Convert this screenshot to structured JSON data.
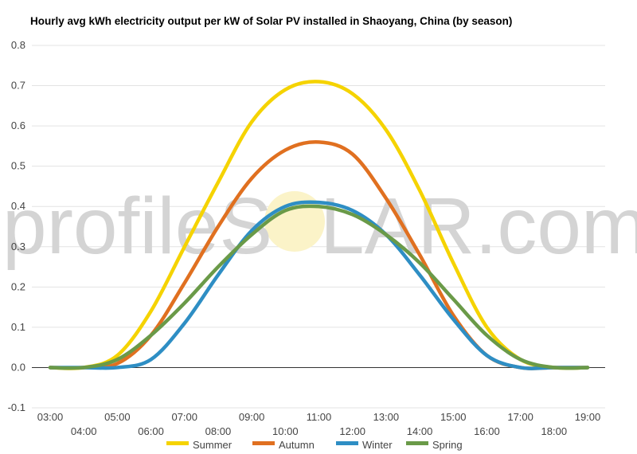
{
  "chart_data": {
    "type": "line",
    "title": "Hourly avg kWh electricity output per kW of Solar PV installed in Shaoyang, China (by season)",
    "xlabel": "",
    "ylabel": "",
    "ylim": [
      -0.1,
      0.8
    ],
    "yticks": [
      "-0.1",
      "0.0",
      "0.1",
      "0.2",
      "0.3",
      "0.4",
      "0.5",
      "0.6",
      "0.7",
      "0.8"
    ],
    "x": [
      "03:00",
      "04:00",
      "05:00",
      "06:00",
      "07:00",
      "08:00",
      "09:00",
      "10:00",
      "11:00",
      "12:00",
      "13:00",
      "14:00",
      "15:00",
      "16:00",
      "17:00",
      "18:00",
      "19:00"
    ],
    "grid": true,
    "legend": "bottom",
    "series": [
      {
        "name": "Summer",
        "color": "#f5d300",
        "values": [
          0.0,
          0.0,
          0.03,
          0.14,
          0.3,
          0.46,
          0.61,
          0.69,
          0.71,
          0.68,
          0.59,
          0.44,
          0.26,
          0.1,
          0.02,
          0.0,
          0.0
        ]
      },
      {
        "name": "Autumn",
        "color": "#e07020",
        "values": [
          0.0,
          0.0,
          0.01,
          0.08,
          0.21,
          0.35,
          0.47,
          0.54,
          0.56,
          0.53,
          0.42,
          0.28,
          0.13,
          0.03,
          0.0,
          0.0,
          0.0
        ]
      },
      {
        "name": "Winter",
        "color": "#2e8ec4",
        "values": [
          0.0,
          0.0,
          0.0,
          0.02,
          0.11,
          0.23,
          0.34,
          0.4,
          0.41,
          0.39,
          0.33,
          0.23,
          0.12,
          0.03,
          0.0,
          0.0,
          0.0
        ]
      },
      {
        "name": "Spring",
        "color": "#6a9a48",
        "values": [
          0.0,
          0.0,
          0.02,
          0.08,
          0.16,
          0.25,
          0.33,
          0.39,
          0.4,
          0.38,
          0.33,
          0.26,
          0.17,
          0.08,
          0.02,
          0.0,
          0.0
        ]
      }
    ]
  },
  "watermark": {
    "left": "profileS",
    "right": "LAR.com"
  }
}
